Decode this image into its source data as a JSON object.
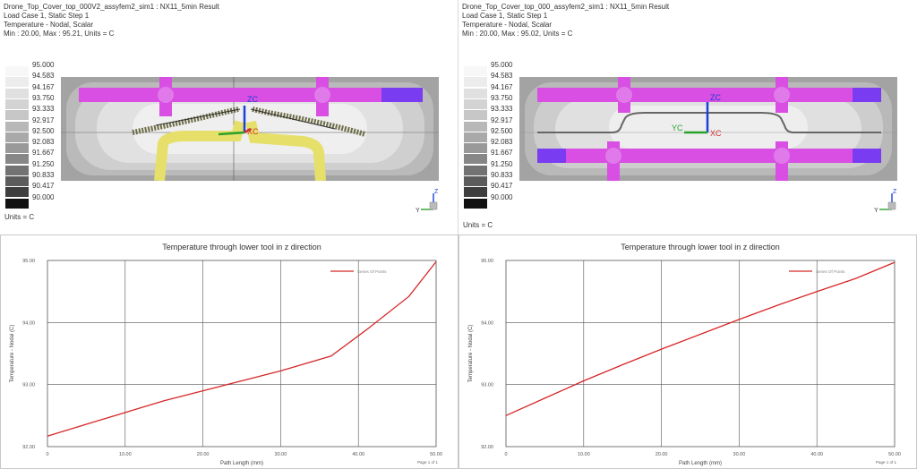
{
  "panels": [
    {
      "header": [
        "Drone_Top_Cover_top_000V2_assyfem2_sim1 : NX11_5min Result",
        "Load Case 1, Static Step 1",
        "Temperature - Nodal, Scalar",
        "Min : 20.00, Max : 95.21, Units = C"
      ],
      "legend_values": [
        "95.000",
        "94.583",
        "94.167",
        "93.750",
        "93.333",
        "92.917",
        "92.500",
        "92.083",
        "91.667",
        "91.250",
        "90.833",
        "90.417",
        "90.000"
      ],
      "units": "Units = C",
      "axis_labels": {
        "zc": "ZC",
        "xc": "XC",
        "yc": "YC"
      },
      "triad": {
        "z": "Z",
        "y": "Y"
      }
    },
    {
      "header": [
        "Drone_Top_Cover_top_000_assyfem2_sim1 : NX11_5min Result",
        "Load Case 1, Static Step 1",
        "Temperature - Nodal, Scalar",
        "Min : 20.00, Max : 95.02, Units = C"
      ],
      "legend_values": [
        "95.000",
        "94.583",
        "94.167",
        "93.750",
        "93.333",
        "92.917",
        "92.500",
        "92.083",
        "91.667",
        "91.250",
        "90.833",
        "90.417",
        "90.000"
      ],
      "units": "Units = C",
      "axis_labels": {
        "zc": "ZC",
        "xc": "XC",
        "yc": "YC"
      },
      "triad": {
        "z": "Z",
        "y": "Y"
      }
    }
  ],
  "legend_colors": [
    "#f7f7f7",
    "#ececec",
    "#e0e0e0",
    "#d3d3d3",
    "#c6c6c6",
    "#b8b8b8",
    "#a9a9a9",
    "#999999",
    "#878787",
    "#737373",
    "#5c5c5c",
    "#3e3e3e",
    "#111111"
  ],
  "colors": {
    "magenta": "#d94fe3",
    "purple": "#7a3cf0",
    "yellow": "#e6e06a",
    "series": "#d62728",
    "grid": "#555555"
  },
  "chart_data": [
    {
      "type": "line",
      "title": "Temperature through lower tool in z direction",
      "xlabel": "Path Length (mm)",
      "ylabel": "Temperature - Nodal (C)",
      "xlim": [
        0,
        50
      ],
      "ylim": [
        92,
        95
      ],
      "xticks": [
        "0",
        "10.00",
        "20.00",
        "30.00",
        "40.00",
        "50.00"
      ],
      "yticks": [
        "92.00",
        "93.00",
        "94.00",
        "95.00"
      ],
      "grid": true,
      "legend_position": "top-right",
      "footer": "Page 1 of 1",
      "series": [
        {
          "name": "Series Of Points",
          "x": [
            0,
            5,
            10,
            15,
            20,
            25,
            30,
            36.5,
            41,
            46.5,
            50
          ],
          "y": [
            92.17,
            92.36,
            92.55,
            92.74,
            92.9,
            93.06,
            93.22,
            93.46,
            93.88,
            94.42,
            94.98
          ]
        }
      ]
    },
    {
      "type": "line",
      "title": "Temperature through lower tool in z direction",
      "xlabel": "Path Length (mm)",
      "ylabel": "Temperature - Nodal (C)",
      "xlim": [
        0,
        50
      ],
      "ylim": [
        92,
        95
      ],
      "xticks": [
        "0",
        "10.00",
        "20.00",
        "30.00",
        "40.00",
        "50.00"
      ],
      "yticks": [
        "92.00",
        "93.00",
        "94.00",
        "95.00"
      ],
      "grid": true,
      "legend_position": "top-right",
      "footer": "Page 1 of 1",
      "series": [
        {
          "name": "Series Of Points",
          "x": [
            0,
            5,
            10,
            15,
            20,
            25,
            30,
            35,
            40,
            45,
            50
          ],
          "y": [
            92.5,
            92.78,
            93.06,
            93.32,
            93.57,
            93.81,
            94.05,
            94.28,
            94.5,
            94.71,
            94.97
          ]
        }
      ]
    }
  ]
}
